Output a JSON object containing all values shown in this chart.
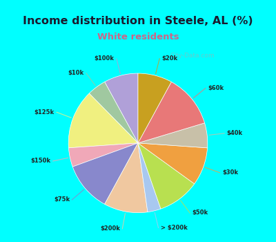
{
  "title": "Income distribution in Steele, AL (%)",
  "subtitle": "White residents",
  "title_color": "#1a1a2e",
  "subtitle_color": "#cc6688",
  "bg_outer": "#00ffff",
  "bg_inner": "#e8f5ee",
  "labels": [
    "$100k",
    "$10k",
    "$125k",
    "$150k",
    "$75k",
    "$200k",
    "> $200k",
    "$50k",
    "$30k",
    "$40k",
    "$60k",
    "$20k"
  ],
  "sizes": [
    9.0,
    5.0,
    15.5,
    5.0,
    13.0,
    11.5,
    3.5,
    11.0,
    10.0,
    6.5,
    14.0,
    9.0
  ],
  "colors": [
    "#b0a0d8",
    "#a0c8a0",
    "#f0f080",
    "#f0a8b8",
    "#8888cc",
    "#f0c8a0",
    "#a8c8f0",
    "#b8e050",
    "#f0a040",
    "#c8c0a8",
    "#e87878",
    "#c8a020"
  ],
  "start_angle": 90,
  "figsize": [
    4.0,
    3.5
  ],
  "dpi": 100
}
